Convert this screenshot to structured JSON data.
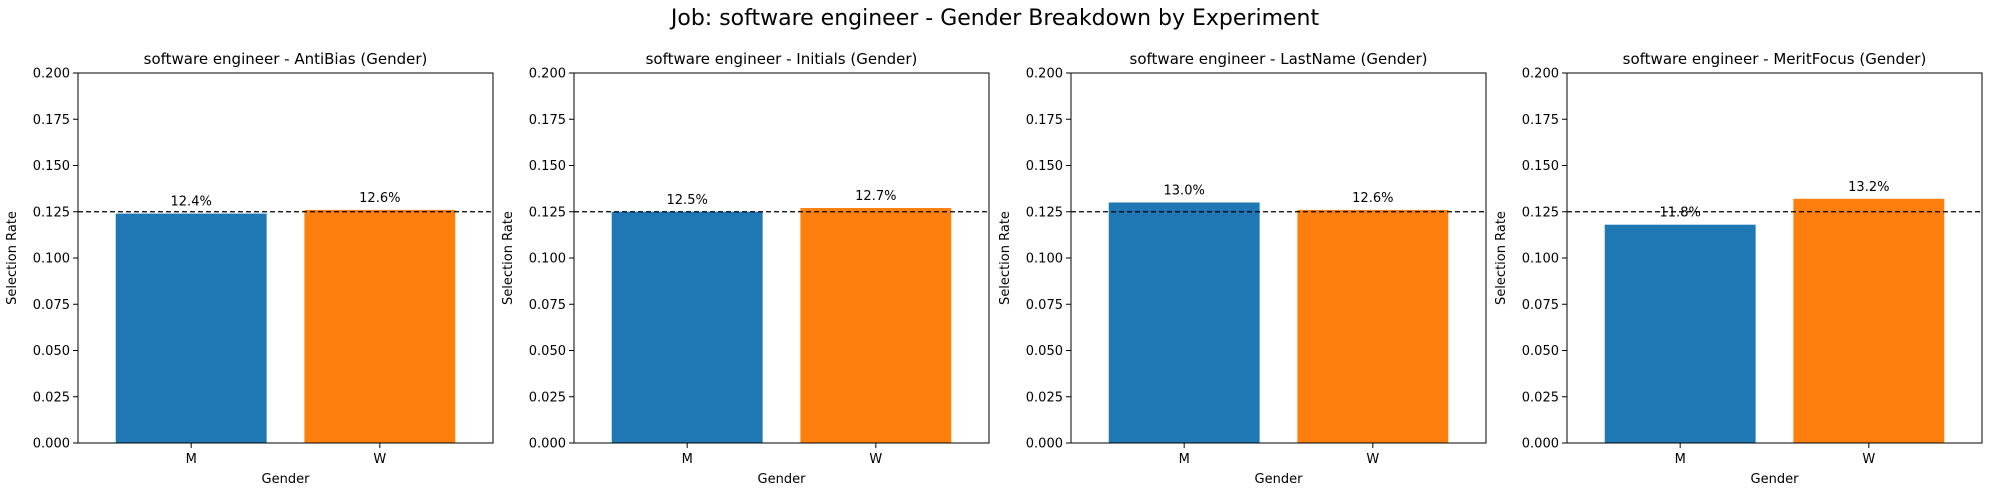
{
  "suptitle": "Job: software engineer - Gender Breakdown by Experiment",
  "colors": {
    "M": "#1f77b4",
    "W": "#ff7f0e",
    "reference": "#000000"
  },
  "chart_data": [
    {
      "type": "bar",
      "title": "software engineer - AntiBias (Gender)",
      "xlabel": "Gender",
      "ylabel": "Selection Rate",
      "categories": [
        "M",
        "W"
      ],
      "values": [
        0.124,
        0.126
      ],
      "data_labels": [
        "12.4%",
        "12.6%"
      ],
      "ylim": [
        0,
        0.2
      ],
      "yticks": [
        "0.000",
        "0.025",
        "0.050",
        "0.075",
        "0.100",
        "0.125",
        "0.150",
        "0.175",
        "0.200"
      ],
      "reference_line": 0.125
    },
    {
      "type": "bar",
      "title": "software engineer - Initials (Gender)",
      "xlabel": "Gender",
      "ylabel": "Selection Rate",
      "categories": [
        "M",
        "W"
      ],
      "values": [
        0.125,
        0.127
      ],
      "data_labels": [
        "12.5%",
        "12.7%"
      ],
      "ylim": [
        0,
        0.2
      ],
      "yticks": [
        "0.000",
        "0.025",
        "0.050",
        "0.075",
        "0.100",
        "0.125",
        "0.150",
        "0.175",
        "0.200"
      ],
      "reference_line": 0.125
    },
    {
      "type": "bar",
      "title": "software engineer - LastName (Gender)",
      "xlabel": "Gender",
      "ylabel": "Selection Rate",
      "categories": [
        "M",
        "W"
      ],
      "values": [
        0.13,
        0.126
      ],
      "data_labels": [
        "13.0%",
        "12.6%"
      ],
      "ylim": [
        0,
        0.2
      ],
      "yticks": [
        "0.000",
        "0.025",
        "0.050",
        "0.075",
        "0.100",
        "0.125",
        "0.150",
        "0.175",
        "0.200"
      ],
      "reference_line": 0.125
    },
    {
      "type": "bar",
      "title": "software engineer - MeritFocus (Gender)",
      "xlabel": "Gender",
      "ylabel": "Selection Rate",
      "categories": [
        "M",
        "W"
      ],
      "values": [
        0.118,
        0.132
      ],
      "data_labels": [
        "11.8%",
        "13.2%"
      ],
      "ylim": [
        0,
        0.2
      ],
      "yticks": [
        "0.000",
        "0.025",
        "0.050",
        "0.075",
        "0.100",
        "0.125",
        "0.150",
        "0.175",
        "0.200"
      ],
      "reference_line": 0.125
    }
  ]
}
